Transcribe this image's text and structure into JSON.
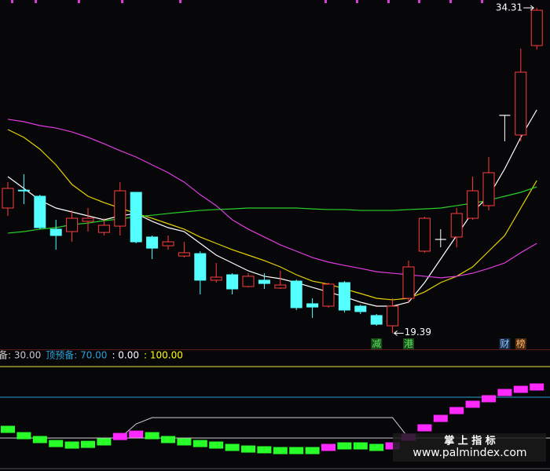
{
  "chart_data": [
    {
      "type": "candlestick",
      "ylim": [
        18.65,
        34.67
      ],
      "open": [
        25.13,
        25.95,
        25.67,
        24.16,
        24.05,
        24.52,
        24.01,
        24.3,
        25.85,
        23.8,
        23.4,
        22.93,
        23.04,
        21.82,
        22.07,
        21.53,
        21.82,
        21.46,
        21.78,
        20.74,
        20.63,
        21.71,
        20.63,
        20.2,
        19.73,
        20.99,
        23.15,
        23.69,
        23.8,
        24.66,
        25.24,
        29.38,
        28.48,
        32.58
      ],
      "high": [
        26.32,
        26.68,
        25.74,
        24.59,
        25.02,
        25.13,
        24.66,
        26.32,
        25.85,
        23.87,
        23.87,
        23.58,
        23.15,
        22.61,
        22.14,
        22.14,
        22.14,
        22.25,
        21.85,
        20.99,
        21.71,
        21.78,
        20.7,
        20.27,
        20.99,
        22.72,
        24.73,
        24.16,
        25.13,
        26.57,
        27.47,
        29.38,
        32.44,
        34.31
      ],
      "low": [
        24.77,
        25.31,
        24.16,
        23.22,
        23.58,
        24.05,
        23.87,
        23.87,
        23.51,
        22.79,
        23.22,
        22.86,
        21.17,
        21.71,
        21.17,
        21.49,
        21.42,
        21.42,
        20.45,
        20.09,
        20.56,
        20.34,
        20.27,
        19.73,
        19.39,
        20.81,
        23.08,
        23.33,
        23.33,
        24.59,
        25.02,
        28.19,
        28.19,
        32.4
      ],
      "close": [
        26.03,
        25.92,
        24.23,
        23.87,
        24.66,
        24.66,
        24.34,
        25.92,
        23.58,
        23.29,
        23.58,
        23.08,
        21.82,
        21.96,
        21.42,
        22.0,
        21.67,
        21.6,
        20.56,
        20.59,
        21.64,
        20.45,
        20.38,
        19.8,
        20.63,
        22.43,
        24.66,
        23.69,
        24.88,
        25.92,
        26.75,
        29.38,
        31.36,
        34.2
      ],
      "up_color": "#ff3c3c",
      "down_color": "#54ffff",
      "doji_color": "#ffffff",
      "series": [
        {
          "color": "#ffffff",
          "values": [
            26.57,
            26.03,
            25.49,
            25.13,
            24.95,
            24.77,
            24.59,
            24.77,
            24.88,
            24.52,
            24.23,
            24.05,
            23.51,
            22.97,
            22.61,
            22.25,
            22.0,
            21.89,
            21.71,
            21.49,
            21.28,
            21.06,
            20.81,
            20.63,
            20.63,
            20.81,
            21.71,
            22.79,
            23.87,
            24.95,
            25.67,
            26.93,
            28.37,
            29.63
          ]
        },
        {
          "color": "#e6d200",
          "values": [
            28.73,
            28.37,
            27.83,
            27.11,
            26.21,
            25.67,
            25.38,
            25.13,
            24.88,
            24.66,
            24.41,
            24.16,
            23.8,
            23.51,
            23.22,
            22.97,
            22.72,
            22.43,
            22.07,
            21.78,
            21.64,
            21.42,
            21.21,
            20.99,
            20.92,
            20.99,
            21.28,
            21.71,
            22.0,
            22.43,
            23.15,
            23.87,
            25.13,
            26.39
          ]
        },
        {
          "color": "#e03ce0",
          "values": [
            29.2,
            29.09,
            28.91,
            28.8,
            28.62,
            28.37,
            28.08,
            27.76,
            27.47,
            27.11,
            26.75,
            26.32,
            25.74,
            25.24,
            24.59,
            24.16,
            23.8,
            23.44,
            23.15,
            22.86,
            22.65,
            22.5,
            22.36,
            22.21,
            22.14,
            22.07,
            22.0,
            21.93,
            22.0,
            22.14,
            22.36,
            22.61,
            23.08,
            23.51
          ]
        },
        {
          "color": "#28d228",
          "values": [
            23.98,
            24.05,
            24.16,
            24.23,
            24.37,
            24.44,
            24.55,
            24.63,
            24.73,
            24.8,
            24.88,
            24.95,
            25.02,
            25.06,
            25.09,
            25.13,
            25.13,
            25.13,
            25.13,
            25.09,
            25.06,
            25.06,
            25.02,
            25.02,
            25.02,
            25.06,
            25.09,
            25.13,
            25.24,
            25.35,
            25.49,
            25.67,
            25.85,
            26.1
          ]
        }
      ],
      "annotations": [
        {
          "text": "34.31"
        },
        {
          "text": "19.39"
        }
      ],
      "markers": [
        null,
        null,
        null,
        null,
        null,
        null,
        null,
        null,
        null,
        null,
        null,
        null,
        null,
        null,
        null,
        null,
        null,
        null,
        null,
        null,
        null,
        null,
        null,
        {
          "text": "减",
          "color": "#5ae65a",
          "background": "#1c4a1c"
        },
        null,
        {
          "text": "港",
          "color": "#5ae65a",
          "background": "#1c4a1c"
        },
        null,
        null,
        null,
        null,
        null,
        {
          "text": "财",
          "color": "#8cc8ff",
          "background": "#1a2a44"
        },
        {
          "text": "榜",
          "color": "#ffb464",
          "background": "#4a2a10"
        },
        null
      ]
    },
    {
      "type": "step-bar",
      "ylim": [
        -2.3,
        116.9
      ],
      "yticks": [
        0,
        30,
        70,
        100
      ],
      "ytick_colors": [
        "#555555",
        "#c8c8c8",
        "#2a9fd6",
        "#e6e64a"
      ],
      "legend": [
        {
          "text": "备: 30.00",
          "color": "#c8c8c8"
        },
        {
          "text": "顶预备: 70.00",
          "color": "#2a9fd6"
        },
        {
          "text": ": 0.00",
          "color": "#ffffff"
        },
        {
          "text": ": 100.00",
          "color": "#ffff00"
        }
      ],
      "values": [
        38.5,
        32.3,
        28.5,
        24.6,
        23.1,
        23.8,
        26.2,
        31.5,
        33.8,
        32.3,
        28.5,
        26.2,
        24.6,
        23.1,
        20.8,
        19.2,
        18.5,
        17.7,
        17.7,
        17.7,
        20.8,
        22.3,
        22.3,
        20.8,
        22.3,
        30.8,
        40.0,
        49.2,
        56.9,
        63.1,
        68.5,
        74.6,
        77.7,
        80.0
      ],
      "colors": [
        "#28ff28",
        "#28ff28",
        "#28ff28",
        "#28ff28",
        "#28ff28",
        "#28ff28",
        "#28ff28",
        "#ff28ff",
        "#ff28ff",
        "#28ff28",
        "#28ff28",
        "#28ff28",
        "#28ff28",
        "#28ff28",
        "#28ff28",
        "#28ff28",
        "#28ff28",
        "#28ff28",
        "#28ff28",
        "#28ff28",
        "#ff28ff",
        "#28ff28",
        "#28ff28",
        "#28ff28",
        "#ff28ff",
        "#ff28ff",
        "#ff28ff",
        "#ff28ff",
        "#ff28ff",
        "#ff28ff",
        "#ff28ff",
        "#ff28ff",
        "#ff28ff",
        "#ff28ff"
      ],
      "line": {
        "color": "#d2d2d2",
        "values": [
          30,
          30,
          30,
          30,
          30,
          30,
          30,
          30,
          43.8,
          50,
          50,
          50,
          50,
          50,
          50,
          50,
          50,
          50,
          50,
          50,
          50,
          50,
          50,
          50,
          50,
          30,
          30,
          30,
          30,
          30,
          30,
          30,
          30,
          30
        ]
      }
    }
  ],
  "watermark": {
    "title": "掌 上 指 标",
    "url": "www.palmindex.com"
  }
}
